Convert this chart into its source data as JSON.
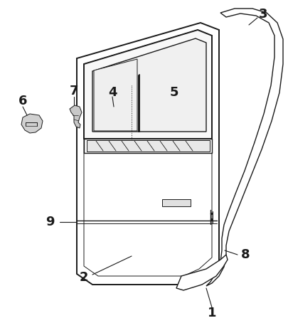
{
  "bg_color": "#ffffff",
  "line_color": "#1a1a1a",
  "label_fontsize": 14,
  "label_fontweight": "bold",
  "lw_main": 1.4,
  "lw_med": 1.0,
  "lw_thin": 0.7
}
